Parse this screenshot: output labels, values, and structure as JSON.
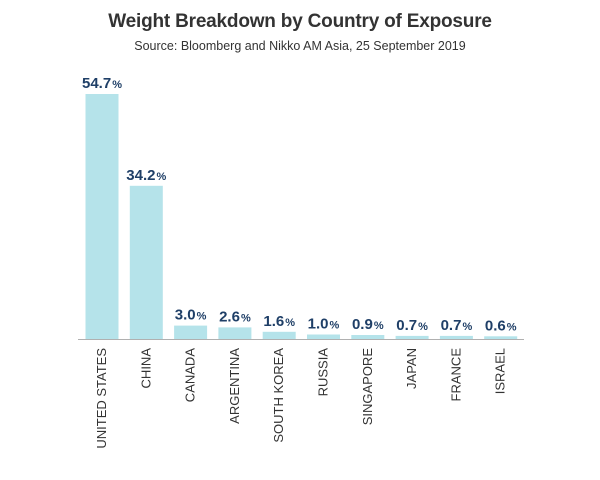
{
  "chart_data": {
    "type": "bar",
    "title": "Weight Breakdown by Country of Exposure",
    "subtitle": "Source: Bloomberg and Nikko AM Asia, 25 September 2019",
    "categories": [
      "UNITED STATES",
      "CHINA",
      "CANADA",
      "ARGENTINA",
      "SOUTH KOREA",
      "RUSSIA",
      "SINGAPORE",
      "JAPAN",
      "FRANCE",
      "ISRAEL"
    ],
    "values": [
      54.7,
      34.2,
      3.0,
      2.6,
      1.6,
      1.0,
      0.9,
      0.7,
      0.7,
      0.6
    ],
    "value_labels": [
      "54.7",
      "34.2",
      "3.0",
      "2.6",
      "1.6",
      "1.0",
      "0.9",
      "0.7",
      "0.7",
      "0.6"
    ],
    "value_suffix": "%",
    "ylim": [
      0,
      54.7
    ],
    "grid": false,
    "legend": "none",
    "bar_color": "#b5e3ea",
    "label_color": "#1f3f67",
    "axis_color": "#b0b0b0"
  }
}
